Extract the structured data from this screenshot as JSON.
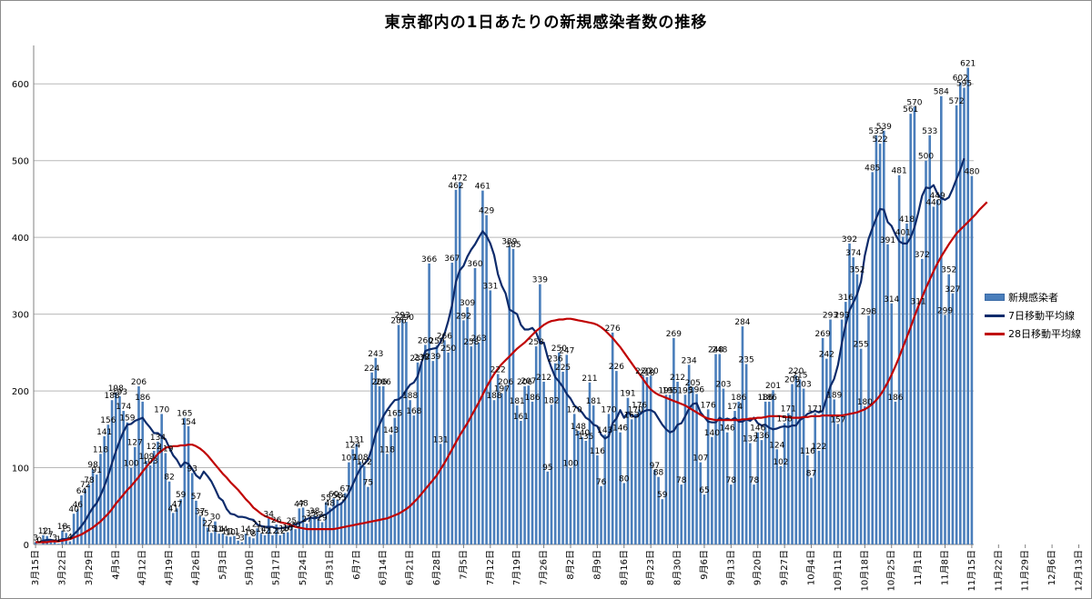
{
  "chart_data": {
    "type": "bar",
    "title": "東京都内の1日あたりの新規感染者数の推移",
    "ylim": [
      0,
      650
    ],
    "yticks": [
      0,
      100,
      200,
      300,
      400,
      500,
      600
    ],
    "grid": true,
    "legend_position": "right",
    "x_tick_labels": [
      "3月15日",
      "3月22日",
      "3月29日",
      "4月5日",
      "4月12日",
      "4月19日",
      "4月26日",
      "5月3日",
      "5月10日",
      "5月17日",
      "5月24日",
      "5月31日",
      "6月7日",
      "6月14日",
      "6月21日",
      "6月28日",
      "7月5日",
      "7月12日",
      "7月19日",
      "7月26日",
      "8月2日",
      "8月9日",
      "8月16日",
      "8月23日",
      "8月30日",
      "9月6日",
      "9月13日",
      "9月20日",
      "9月27日",
      "10月4日",
      "10月11日",
      "10月18日",
      "10月25日",
      "11月1日",
      "11月8日",
      "11月15日",
      "11月22日",
      "11月29日",
      "12月6日",
      "12月13日"
    ],
    "series": [
      {
        "name": "新規感染者",
        "kind": "bar",
        "color": "#4a7ebb",
        "values": [
          3,
          0,
          12,
          11,
          7,
          3,
          1,
          18,
          15,
          4,
          40,
          46,
          64,
          72,
          78,
          98,
          91,
          118,
          141,
          156,
          188,
          198,
          193,
          174,
          159,
          100,
          127,
          206,
          186,
          109,
          103,
          122,
          134,
          170,
          119,
          82,
          41,
          47,
          59,
          165,
          154,
          93,
          57,
          37,
          35,
          22,
          15,
          30,
          14,
          14,
          11,
          10,
          11,
          5,
          3,
          14,
          10,
          8,
          21,
          14,
          12,
          34,
          12,
          26,
          12,
          15,
          16,
          25,
          20,
          47,
          48,
          27,
          35,
          38,
          33,
          29,
          55,
          48,
          60,
          58,
          55,
          67,
          107,
          124,
          131,
          108,
          102,
          75,
          224,
          243,
          206,
          206,
          118,
          143,
          165,
          286,
          293,
          290,
          188,
          168,
          237,
          238,
          260,
          366,
          239,
          259,
          131,
          266,
          250,
          367,
          462,
          472,
          292,
          309,
          258,
          360,
          263,
          461,
          429,
          331,
          188,
          222,
          197,
          206,
          389,
          385,
          181,
          161,
          206,
          207,
          186,
          258,
          339,
          212,
          95,
          182,
          236,
          250,
          225,
          247,
          100,
          170,
          148,
          140,
          135,
          211,
          181,
          116,
          76,
          143,
          170,
          276,
          226,
          146,
          80,
          191,
          163,
          170,
          176,
          220,
          218,
          220,
          97,
          88,
          59,
          195,
          195,
          269,
          212,
          78,
          195,
          234,
          205,
          196,
          107,
          65,
          176,
          140,
          248,
          248,
          203,
          146,
          78,
          174,
          186,
          284,
          235,
          132,
          78,
          146,
          136,
          186,
          186,
          201,
          124,
          102,
          158,
          171,
          209,
          220,
          215,
          203,
          116,
          87,
          171,
          122,
          269,
          242,
          293,
          189,
          157,
          293,
          316,
          392,
          374,
          352,
          255,
          180,
          298,
          485,
          533,
          522,
          539,
          391,
          314,
          186,
          481,
          401,
          418,
          561,
          570,
          311,
          372,
          500,
          533,
          440,
          449,
          584,
          299,
          352,
          327,
          572,
          602,
          595,
          621,
          480
        ]
      },
      {
        "name": "7日移動平均線",
        "kind": "line",
        "color": "#0d2b6b",
        "values": [
          3,
          3,
          5,
          6,
          6,
          5,
          5,
          7,
          7,
          8,
          13,
          18,
          24,
          31,
          40,
          48,
          54,
          64,
          76,
          90,
          106,
          121,
          135,
          147,
          156,
          157,
          161,
          163,
          165,
          158,
          152,
          145,
          145,
          141,
          137,
          126,
          116,
          110,
          101,
          107,
          105,
          98,
          90,
          86,
          95,
          89,
          82,
          72,
          61,
          57,
          46,
          40,
          39,
          36,
          36,
          35,
          33,
          32,
          26,
          24,
          23,
          23,
          23,
          21,
          21,
          22,
          22,
          25,
          26,
          28,
          30,
          33,
          35,
          34,
          35,
          38,
          39,
          43,
          47,
          51,
          53,
          59,
          67,
          78,
          89,
          99,
          105,
          110,
          125,
          144,
          156,
          167,
          175,
          182,
          188,
          189,
          193,
          201,
          208,
          211,
          219,
          237,
          252,
          254,
          255,
          256,
          264,
          274,
          291,
          312,
          342,
          357,
          363,
          375,
          384,
          391,
          400,
          408,
          402,
          392,
          377,
          352,
          337,
          327,
          306,
          303,
          300,
          286,
          280,
          280,
          282,
          276,
          263,
          263,
          244,
          230,
          218,
          212,
          205,
          196,
          190,
          181,
          177,
          172,
          165,
          162,
          156,
          154,
          143,
          138,
          141,
          158,
          164,
          175,
          165,
          172,
          168,
          166,
          169,
          173,
          175,
          175,
          172,
          164,
          156,
          150,
          146,
          148,
          156,
          158,
          167,
          177,
          183,
          184,
          172,
          166,
          160,
          159,
          159,
          165,
          162,
          164,
          162,
          165,
          160,
          160,
          163,
          161,
          165,
          158,
          155,
          156,
          152,
          150,
          151,
          153,
          154,
          153,
          155,
          155,
          162,
          165,
          170,
          172,
          174,
          172,
          174,
          191,
          206,
          216,
          234,
          262,
          286,
          305,
          315,
          326,
          342,
          376,
          398,
          412,
          425,
          437,
          436,
          420,
          415,
          404,
          395,
          392,
          392,
          400,
          413,
          432,
          454,
          465,
          464,
          468,
          457,
          451,
          449,
          452,
          463,
          476,
          488,
          503
        ]
      },
      {
        "name": "28日移動平均線",
        "kind": "line",
        "color": "#c00000",
        "values": [
          3,
          3,
          3,
          3,
          4,
          4,
          4,
          5,
          6,
          7,
          9,
          11,
          13,
          16,
          19,
          22,
          26,
          30,
          35,
          40,
          46,
          53,
          59,
          65,
          71,
          76,
          82,
          88,
          95,
          101,
          107,
          112,
          118,
          122,
          126,
          127,
          128,
          128,
          129,
          129,
          130,
          130,
          128,
          125,
          121,
          116,
          110,
          104,
          98,
          92,
          87,
          81,
          76,
          71,
          65,
          59,
          54,
          48,
          44,
          40,
          37,
          35,
          33,
          31,
          29,
          28,
          27,
          25,
          23,
          22,
          21,
          20,
          20,
          20,
          20,
          20,
          20,
          20,
          20,
          21,
          22,
          23,
          24,
          25,
          26,
          27,
          28,
          29,
          30,
          31,
          32,
          33,
          34,
          36,
          38,
          40,
          43,
          46,
          50,
          55,
          60,
          66,
          72,
          78,
          84,
          90,
          98,
          106,
          115,
          124,
          133,
          142,
          150,
          158,
          167,
          176,
          185,
          195,
          205,
          214,
          222,
          229,
          235,
          240,
          245,
          250,
          255,
          259,
          263,
          268,
          273,
          278,
          282,
          286,
          289,
          291,
          292,
          293,
          293,
          294,
          294,
          293,
          292,
          291,
          290,
          289,
          288,
          286,
          283,
          279,
          274,
          269,
          263,
          257,
          250,
          243,
          236,
          229,
          222,
          215,
          208,
          202,
          198,
          195,
          193,
          191,
          189,
          187,
          185,
          183,
          181,
          178,
          175,
          172,
          169,
          166,
          164,
          163,
          162,
          162,
          162,
          162,
          162,
          162,
          162,
          163,
          163,
          164,
          164,
          165,
          165,
          166,
          167,
          167,
          167,
          167,
          166,
          166,
          165,
          165,
          165,
          166,
          166,
          167,
          167,
          167,
          168,
          168,
          168,
          168,
          168,
          168,
          169,
          170,
          171,
          172,
          174,
          176,
          179,
          183,
          188,
          194,
          202,
          211,
          221,
          232,
          244,
          257,
          270,
          283,
          297,
          310,
          322,
          334,
          345,
          356,
          366,
          375,
          383,
          391,
          398,
          405,
          410,
          415,
          420,
          425,
          430,
          436,
          441,
          446
        ]
      }
    ]
  }
}
